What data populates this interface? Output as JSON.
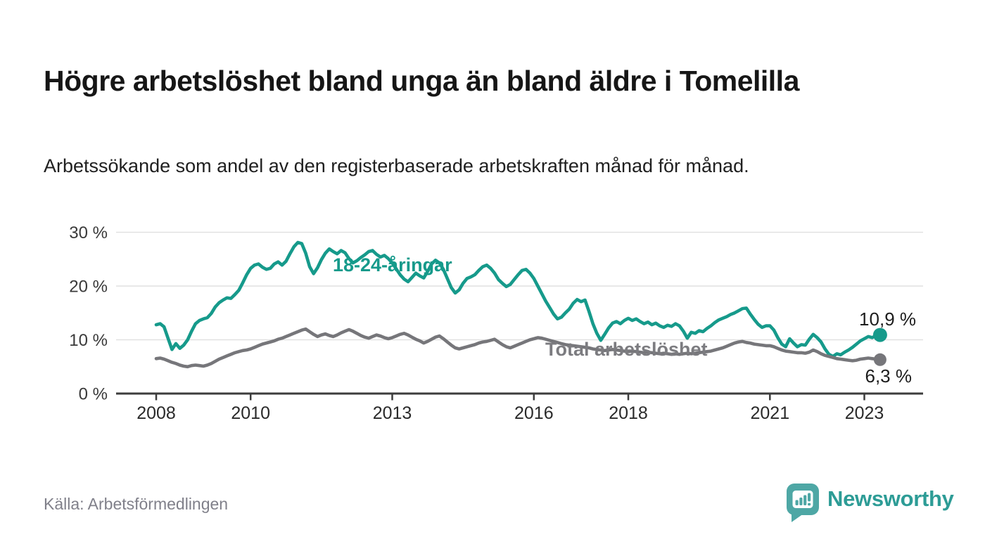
{
  "header": {
    "title": "Högre arbetslöshet bland unga än bland äldre i Tomelilla",
    "subtitle": "Arbetssökande som andel av den registerbaserade arbetskraften månad för månad."
  },
  "footer": {
    "source": "Källa: Arbetsförmedlingen",
    "brand": "Newsworthy",
    "logo_icon": "newsworthy-speech-bubble-bar-chart-icon"
  },
  "colors": {
    "young": "#169a8b",
    "total": "#76767a",
    "grid": "#e1e1e1",
    "axis": "#3c3c3c",
    "y_label": "#3a3a3a",
    "x_label": "#2a2a2a",
    "brand_bubble": "#4ea7a5",
    "brand_text": "#2d9c96"
  },
  "chart_data": {
    "type": "line",
    "title": "Högre arbetslöshet bland unga än bland äldre i Tomelilla",
    "xlabel": "",
    "ylabel": "Arbetssökande som andel av den registerbaserade arbetskraften",
    "grid": "horizontal",
    "x_start": 2008.0,
    "x_step_months": 1,
    "x_end_label_period": "2023-05",
    "x_ticks": [
      2008,
      2010,
      2013,
      2016,
      2018,
      2021,
      2023
    ],
    "x_tick_labels": [
      "2008",
      "2010",
      "2013",
      "2016",
      "2018",
      "2021",
      "2023"
    ],
    "y_ticks": [
      0,
      10,
      20,
      30
    ],
    "y_tick_suffix": " %",
    "ylim": [
      0,
      31
    ],
    "xlim": [
      2007.2,
      2023.9
    ],
    "legend_position": "inline-labels",
    "series": [
      {
        "id": "young",
        "label": "18-24-åringar",
        "end_label": "10,9 %",
        "end_value": 10.9,
        "color": "#169a8b",
        "values": [
          12.8,
          13.0,
          12.4,
          10.3,
          8.2,
          9.3,
          8.4,
          9.0,
          10.0,
          11.6,
          13.0,
          13.6,
          13.9,
          14.1,
          14.9,
          16.1,
          16.9,
          17.4,
          17.8,
          17.7,
          18.4,
          19.2,
          20.6,
          22.1,
          23.3,
          23.9,
          24.1,
          23.5,
          23.1,
          23.3,
          24.1,
          24.5,
          23.9,
          24.6,
          26.0,
          27.3,
          28.1,
          27.9,
          26.1,
          23.6,
          22.3,
          23.4,
          24.9,
          26.1,
          26.9,
          26.4,
          26.0,
          26.6,
          26.2,
          25.1,
          24.3,
          24.7,
          25.3,
          25.8,
          26.4,
          26.6,
          25.9,
          25.4,
          25.7,
          25.1,
          24.3,
          23.2,
          22.1,
          21.3,
          20.8,
          21.6,
          22.4,
          21.9,
          21.5,
          22.7,
          24.1,
          24.8,
          24.3,
          23.1,
          21.4,
          19.7,
          18.7,
          19.3,
          20.5,
          21.4,
          21.7,
          22.1,
          22.9,
          23.6,
          23.9,
          23.3,
          22.4,
          21.2,
          20.5,
          19.9,
          20.3,
          21.2,
          22.1,
          22.9,
          23.1,
          22.4,
          21.4,
          20.0,
          18.6,
          17.2,
          16.0,
          14.8,
          13.9,
          14.2,
          15.0,
          15.7,
          16.8,
          17.5,
          17.1,
          17.4,
          15.3,
          13.0,
          11.2,
          9.9,
          11.0,
          12.2,
          13.1,
          13.4,
          13.0,
          13.6,
          14.0,
          13.6,
          13.9,
          13.4,
          13.0,
          13.3,
          12.8,
          13.1,
          12.6,
          12.3,
          12.7,
          12.5,
          13.0,
          12.6,
          11.6,
          10.3,
          11.4,
          11.2,
          11.7,
          11.5,
          12.1,
          12.6,
          13.2,
          13.7,
          14.0,
          14.3,
          14.7,
          15.0,
          15.4,
          15.8,
          15.9,
          14.8,
          13.8,
          12.9,
          12.3,
          12.6,
          12.6,
          11.8,
          10.4,
          9.2,
          8.7,
          10.2,
          9.4,
          8.7,
          9.1,
          9.0,
          10.1,
          11.0,
          10.4,
          9.6,
          8.3,
          7.3,
          6.9,
          7.4,
          7.2,
          7.7,
          8.1,
          8.6,
          9.2,
          9.8,
          10.2,
          10.6,
          10.4,
          10.8,
          10.9
        ]
      },
      {
        "id": "total",
        "label": "Total arbetslöshet",
        "end_label": "6,3 %",
        "end_value": 6.3,
        "color": "#76767a",
        "values": [
          6.5,
          6.6,
          6.4,
          6.1,
          5.8,
          5.6,
          5.3,
          5.1,
          5.0,
          5.2,
          5.3,
          5.2,
          5.1,
          5.3,
          5.6,
          6.0,
          6.4,
          6.7,
          7.0,
          7.3,
          7.6,
          7.8,
          8.0,
          8.1,
          8.3,
          8.6,
          8.9,
          9.2,
          9.4,
          9.6,
          9.8,
          10.1,
          10.3,
          10.6,
          10.9,
          11.2,
          11.5,
          11.8,
          12.0,
          11.5,
          11.0,
          10.6,
          10.9,
          11.1,
          10.8,
          10.6,
          10.9,
          11.3,
          11.6,
          11.9,
          11.6,
          11.2,
          10.8,
          10.5,
          10.3,
          10.6,
          10.9,
          10.7,
          10.4,
          10.2,
          10.4,
          10.7,
          11.0,
          11.2,
          10.9,
          10.5,
          10.1,
          9.8,
          9.4,
          9.7,
          10.1,
          10.5,
          10.7,
          10.2,
          9.6,
          9.0,
          8.5,
          8.3,
          8.5,
          8.7,
          8.9,
          9.1,
          9.4,
          9.6,
          9.7,
          9.9,
          10.1,
          9.6,
          9.1,
          8.7,
          8.5,
          8.8,
          9.1,
          9.4,
          9.7,
          10.0,
          10.2,
          10.4,
          10.3,
          10.1,
          9.9,
          9.7,
          9.5,
          9.3,
          9.1,
          9.0,
          8.9,
          8.8,
          8.7,
          8.6,
          8.5,
          8.3,
          8.2,
          8.1,
          8.0,
          8.1,
          8.2,
          8.1,
          8.0,
          7.9,
          7.8,
          7.9,
          7.8,
          7.7,
          7.6,
          7.7,
          7.6,
          7.5,
          7.4,
          7.5,
          7.4,
          7.3,
          7.4,
          7.3,
          7.4,
          7.5,
          7.4,
          7.5,
          7.6,
          7.7,
          7.8,
          7.9,
          8.1,
          8.3,
          8.5,
          8.8,
          9.1,
          9.4,
          9.6,
          9.7,
          9.5,
          9.4,
          9.2,
          9.1,
          9.0,
          8.9,
          8.9,
          8.7,
          8.4,
          8.1,
          7.9,
          7.8,
          7.7,
          7.6,
          7.6,
          7.5,
          7.7,
          8.1,
          7.8,
          7.4,
          7.1,
          6.9,
          6.7,
          6.5,
          6.4,
          6.3,
          6.2,
          6.1,
          6.2,
          6.4,
          6.5,
          6.6,
          6.5,
          6.4,
          6.3
        ]
      }
    ]
  }
}
